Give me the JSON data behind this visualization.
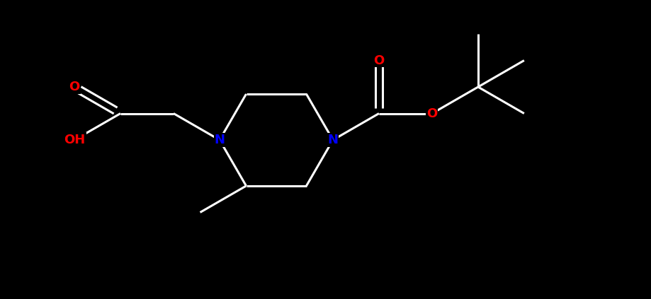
{
  "background_color": "#000000",
  "bond_color": "#ffffff",
  "N_color": "#0000ff",
  "O_color": "#ff0000",
  "line_width": 2.2,
  "figsize": [
    9.19,
    4.23
  ],
  "dpi": 100,
  "xlim": [
    0,
    9.19
  ],
  "ylim": [
    0,
    4.23
  ]
}
